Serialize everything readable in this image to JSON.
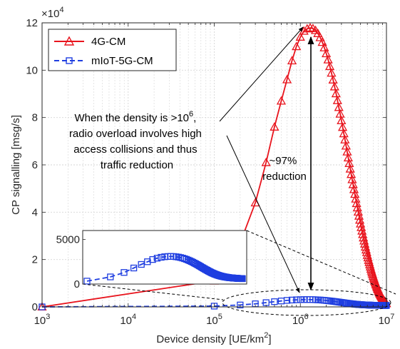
{
  "chart_data": {
    "type": "line",
    "xscale": "log",
    "x_range": [
      1000,
      10000000
    ],
    "y_range": [
      0,
      120000
    ],
    "grid": true,
    "xlabel": "Device density [UE/km",
    "xlabel_sup": "2",
    "xlabel_end": "]",
    "ylabel": "CP signalling [msg/s]",
    "y_multiplier": "×10",
    "y_multiplier_exp": "4",
    "x_ticks": [
      {
        "value": 1000,
        "base": "10",
        "exp": "3"
      },
      {
        "value": 10000,
        "base": "10",
        "exp": "4"
      },
      {
        "value": 100000,
        "base": "10",
        "exp": "5"
      },
      {
        "value": 1000000,
        "base": "10",
        "exp": "6"
      },
      {
        "value": 10000000,
        "base": "10",
        "exp": "7"
      }
    ],
    "y_ticks": [
      {
        "value": 0,
        "label": "0"
      },
      {
        "value": 20000,
        "label": "2"
      },
      {
        "value": 40000,
        "label": "4"
      },
      {
        "value": 60000,
        "label": "6"
      },
      {
        "value": 80000,
        "label": "8"
      },
      {
        "value": 100000,
        "label": "10"
      },
      {
        "value": 120000,
        "label": "12"
      }
    ],
    "legend_position": "top-left",
    "series": [
      {
        "name": "4G-CM",
        "color": "#e8141d",
        "marker": "triangle",
        "points": [
          [
            1000,
            0
          ],
          [
            100000,
            11000
          ],
          [
            200000,
            27000
          ],
          [
            300000,
            44000
          ],
          [
            400000,
            61000
          ],
          [
            500000,
            76000
          ],
          [
            600000,
            87000
          ],
          [
            700000,
            96000
          ],
          [
            800000,
            104000
          ],
          [
            900000,
            110000
          ],
          [
            1000000,
            114000
          ],
          [
            1100000,
            116500
          ],
          [
            1200000,
            117500
          ],
          [
            1300000,
            117900
          ],
          [
            1400000,
            117600
          ],
          [
            1500000,
            116800
          ],
          [
            1600000,
            115500
          ],
          [
            1700000,
            113800
          ],
          [
            1800000,
            111800
          ],
          [
            1900000,
            109500
          ],
          [
            2000000,
            107000
          ],
          [
            2100000,
            104400
          ],
          [
            2200000,
            101600
          ],
          [
            2300000,
            98800
          ],
          [
            2400000,
            95900
          ],
          [
            2500000,
            93000
          ],
          [
            2600000,
            90100
          ],
          [
            2700000,
            87200
          ],
          [
            2800000,
            84300
          ],
          [
            2900000,
            81500
          ],
          [
            3000000,
            78700
          ],
          [
            3100000,
            75900
          ],
          [
            3200000,
            73200
          ],
          [
            3300000,
            70600
          ],
          [
            3400000,
            68000
          ],
          [
            3500000,
            65500
          ],
          [
            3600000,
            63000
          ],
          [
            3700000,
            60600
          ],
          [
            3800000,
            58300
          ],
          [
            3900000,
            56000
          ],
          [
            4000000,
            53800
          ],
          [
            4100000,
            51700
          ],
          [
            4200000,
            49600
          ],
          [
            4300000,
            47600
          ],
          [
            4400000,
            45600
          ],
          [
            4500000,
            43700
          ],
          [
            4600000,
            41900
          ],
          [
            4700000,
            40100
          ],
          [
            4800000,
            38400
          ],
          [
            4900000,
            36700
          ],
          [
            5000000,
            35100
          ],
          [
            5100000,
            33600
          ],
          [
            5200000,
            32100
          ],
          [
            5300000,
            30600
          ],
          [
            5400000,
            29200
          ],
          [
            5500000,
            27900
          ],
          [
            5600000,
            26600
          ],
          [
            5700000,
            25300
          ],
          [
            5800000,
            24100
          ],
          [
            5900000,
            23000
          ],
          [
            6000000,
            21800
          ],
          [
            6100000,
            20800
          ],
          [
            6200000,
            19700
          ],
          [
            6300000,
            18800
          ],
          [
            6400000,
            17800
          ],
          [
            6500000,
            16900
          ],
          [
            6600000,
            16000
          ],
          [
            6700000,
            15200
          ],
          [
            6800000,
            14400
          ],
          [
            6900000,
            13700
          ],
          [
            7000000,
            12900
          ],
          [
            7100000,
            12200
          ],
          [
            7200000,
            11600
          ],
          [
            7300000,
            10900
          ],
          [
            7400000,
            10300
          ],
          [
            7500000,
            9700
          ],
          [
            7600000,
            9200
          ],
          [
            7700000,
            8600
          ],
          [
            7800000,
            8100
          ],
          [
            7900000,
            7600
          ],
          [
            8000000,
            7200
          ],
          [
            8100000,
            6700
          ],
          [
            8200000,
            6300
          ],
          [
            8300000,
            5900
          ],
          [
            8400000,
            5500
          ],
          [
            8500000,
            5200
          ],
          [
            8600000,
            4800
          ],
          [
            8700000,
            4500
          ],
          [
            8800000,
            4200
          ],
          [
            8900000,
            3900
          ],
          [
            9000000,
            3600
          ],
          [
            9100000,
            3300
          ],
          [
            9200000,
            3100
          ],
          [
            9300000,
            2800
          ],
          [
            9400000,
            2600
          ],
          [
            9500000,
            2400
          ],
          [
            9600000,
            2200
          ],
          [
            9700000,
            2000
          ],
          [
            9800000,
            1800
          ],
          [
            9900000,
            1600
          ],
          [
            10000000,
            1400
          ]
        ]
      },
      {
        "name": "mIoT-5G-CM",
        "color": "#1f3ee0",
        "marker": "square",
        "points": [
          [
            1000,
            0
          ],
          [
            100000,
            330
          ],
          [
            200000,
            800
          ],
          [
            300000,
            1300
          ],
          [
            400000,
            1800
          ],
          [
            500000,
            2200
          ],
          [
            600000,
            2500
          ],
          [
            700000,
            2750
          ],
          [
            800000,
            2900
          ],
          [
            900000,
            3000
          ],
          [
            1000000,
            3060
          ],
          [
            1100000,
            3090
          ],
          [
            1200000,
            3100
          ],
          [
            1300000,
            3090
          ],
          [
            1400000,
            3060
          ],
          [
            1500000,
            3020
          ],
          [
            1600000,
            2970
          ],
          [
            1700000,
            2910
          ],
          [
            1800000,
            2840
          ],
          [
            1900000,
            2770
          ],
          [
            2000000,
            2690
          ],
          [
            2100000,
            2610
          ],
          [
            2200000,
            2530
          ],
          [
            2300000,
            2450
          ],
          [
            2400000,
            2360
          ],
          [
            2500000,
            2280
          ],
          [
            2600000,
            2200
          ],
          [
            2700000,
            2120
          ],
          [
            2800000,
            2040
          ],
          [
            2900000,
            1960
          ],
          [
            3000000,
            1880
          ],
          [
            3100000,
            1810
          ],
          [
            3200000,
            1740
          ],
          [
            3300000,
            1670
          ],
          [
            3400000,
            1610
          ],
          [
            3500000,
            1550
          ],
          [
            3600000,
            1490
          ],
          [
            3700000,
            1430
          ],
          [
            3800000,
            1380
          ],
          [
            3900000,
            1330
          ],
          [
            4000000,
            1280
          ],
          [
            4100000,
            1240
          ],
          [
            4200000,
            1200
          ],
          [
            4300000,
            1160
          ],
          [
            4400000,
            1120
          ],
          [
            4500000,
            1090
          ],
          [
            4600000,
            1060
          ],
          [
            4700000,
            1030
          ],
          [
            4800000,
            1000
          ],
          [
            4900000,
            980
          ],
          [
            5000000,
            950
          ],
          [
            5100000,
            930
          ],
          [
            5200000,
            910
          ],
          [
            5300000,
            890
          ],
          [
            5400000,
            870
          ],
          [
            5500000,
            860
          ],
          [
            5600000,
            840
          ],
          [
            5700000,
            830
          ],
          [
            5800000,
            810
          ],
          [
            5900000,
            800
          ],
          [
            6000000,
            790
          ],
          [
            6100000,
            780
          ],
          [
            6200000,
            770
          ],
          [
            6300000,
            760
          ],
          [
            6400000,
            750
          ],
          [
            6500000,
            740
          ],
          [
            6600000,
            730
          ],
          [
            6700000,
            720
          ],
          [
            6800000,
            715
          ],
          [
            6900000,
            710
          ],
          [
            7000000,
            705
          ],
          [
            7100000,
            700
          ],
          [
            7200000,
            695
          ],
          [
            7300000,
            690
          ],
          [
            7400000,
            685
          ],
          [
            7500000,
            680
          ],
          [
            7600000,
            676
          ],
          [
            7700000,
            672
          ],
          [
            7800000,
            668
          ],
          [
            7900000,
            664
          ],
          [
            8000000,
            660
          ],
          [
            8100000,
            656
          ],
          [
            8200000,
            652
          ],
          [
            8300000,
            649
          ],
          [
            8400000,
            646
          ],
          [
            8500000,
            643
          ],
          [
            8600000,
            640
          ],
          [
            8700000,
            637
          ],
          [
            8800000,
            634
          ],
          [
            8900000,
            631
          ],
          [
            9000000,
            628
          ],
          [
            9100000,
            625
          ],
          [
            9200000,
            622
          ],
          [
            9300000,
            620
          ],
          [
            9400000,
            618
          ],
          [
            9500000,
            616
          ],
          [
            9600000,
            614
          ],
          [
            9700000,
            612
          ],
          [
            9800000,
            610
          ],
          [
            9900000,
            608
          ],
          [
            10000000,
            606
          ]
        ]
      }
    ],
    "inset": {
      "x_range": [
        100000,
        10000000
      ],
      "y_range": [
        0,
        6000
      ],
      "y_ticks": [
        {
          "value": 0,
          "label": "0"
        },
        {
          "value": 5000,
          "label": "5000"
        }
      ]
    },
    "annotations": {
      "density_note": [
        "When the density is >10",
        "radio overload involves high",
        "access collisions and thus",
        "traffic reduction"
      ],
      "density_note_sup": "6",
      "density_note_end": ",",
      "reduction_note": [
        "~97%",
        "reduction"
      ]
    }
  }
}
